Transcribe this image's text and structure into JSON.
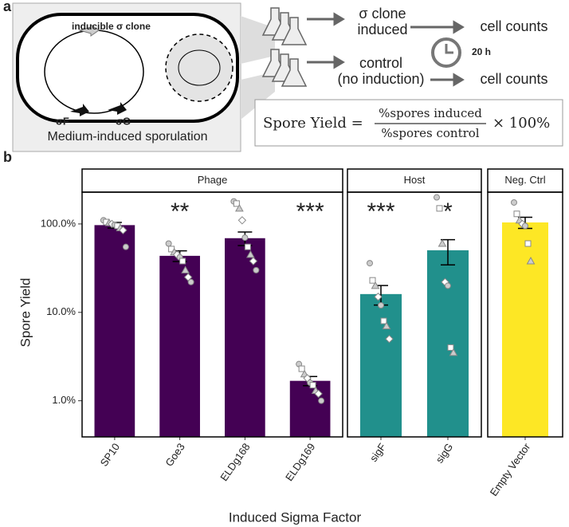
{
  "panel_a": {
    "label": "a",
    "plasmid_label": "inducible σ clone",
    "gene_f": "σF",
    "gene_g": "σG",
    "caption": "Medium-induced sporulation",
    "induced_line1": "σ clone",
    "induced_line2": "induced",
    "control_line1": "control",
    "control_line2": "(no induction)",
    "counts_induced": "cell counts",
    "counts_control": "cell counts",
    "time": "20 h",
    "formula": {
      "lhs": "Spore Yield =",
      "numerator": "%spores induced",
      "denominator": "%spores control",
      "factor": "× 100%"
    }
  },
  "chart_data": {
    "type": "bar",
    "label": "b",
    "xlabel": "Induced Sigma Factor",
    "ylabel": "Spore Yield",
    "log_y": true,
    "ylim": [
      0.39,
      229
    ],
    "yticks": [
      {
        "value": 1,
        "label": "1.0%"
      },
      {
        "value": 10,
        "label": "10.0%"
      },
      {
        "value": 100,
        "label": "100.0%"
      }
    ],
    "groups": [
      {
        "name": "Phage",
        "color": "#440154",
        "categories": [
          "SP10",
          "Goe3",
          "ELDg168",
          "ELDg169"
        ],
        "values": [
          97,
          43.6,
          69,
          1.68
        ],
        "errors": [
          7,
          6,
          12,
          0.2
        ],
        "annotations": [
          null,
          "**",
          null,
          "***"
        ],
        "points": [
          [
            110,
            105,
            103,
            100,
            98,
            95,
            90,
            85,
            55
          ],
          [
            60,
            52,
            48,
            45,
            42,
            38,
            30,
            25,
            22
          ],
          [
            180,
            170,
            150,
            110,
            70,
            55,
            45,
            38,
            30
          ],
          [
            2.6,
            2.3,
            2.0,
            1.8,
            1.6,
            1.5,
            1.3,
            1.2,
            1.0
          ]
        ]
      },
      {
        "name": "Host",
        "color": "#21908c",
        "categories": [
          "sigF",
          "sigG"
        ],
        "values": [
          16.1,
          50.4
        ],
        "errors": [
          4,
          16
        ],
        "annotations": [
          "***",
          "*"
        ],
        "points": [
          [
            36,
            23,
            20,
            15,
            12,
            8,
            7,
            5
          ],
          [
            200,
            150,
            60,
            22,
            20,
            4,
            3.5
          ]
        ]
      },
      {
        "name": "Neg. Ctrl",
        "color": "#fde725",
        "categories": [
          "Empty Vector"
        ],
        "values": [
          104
        ],
        "errors": [
          15
        ],
        "annotations": [
          null
        ],
        "points": [
          [
            175,
            130,
            110,
            100,
            95,
            60,
            38
          ]
        ]
      }
    ]
  }
}
